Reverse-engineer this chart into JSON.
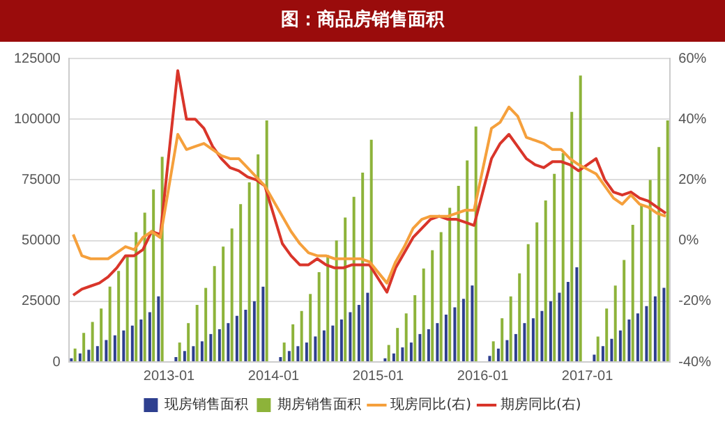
{
  "chart_data": {
    "type": "bar",
    "title": "图：商品房销售面积",
    "categories": [
      null,
      null,
      null,
      null,
      null,
      null,
      null,
      null,
      null,
      null,
      null,
      "2013-01",
      null,
      null,
      null,
      null,
      null,
      null,
      null,
      null,
      null,
      null,
      null,
      "2014-01",
      null,
      null,
      null,
      null,
      null,
      null,
      null,
      null,
      null,
      null,
      null,
      "2015-01",
      null,
      null,
      null,
      null,
      null,
      null,
      null,
      null,
      null,
      null,
      null,
      "2016-01",
      null,
      null,
      null,
      null,
      null,
      null,
      null,
      null,
      null,
      null,
      null,
      "2017-01",
      null,
      null,
      null,
      null,
      null,
      null,
      null,
      null,
      null
    ],
    "series": [
      {
        "name": "现房销售面积",
        "color": "#2e3f8f",
        "values": [
          1500,
          3500,
          5000,
          6500,
          9000,
          11000,
          13000,
          15000,
          17500,
          20500,
          27000,
          null,
          2000,
          4500,
          6500,
          8500,
          11500,
          13500,
          16000,
          19000,
          21500,
          25000,
          31000,
          null,
          2000,
          4500,
          6500,
          8000,
          10500,
          13000,
          15000,
          17500,
          20500,
          23500,
          28500,
          null,
          1500,
          3500,
          6000,
          8000,
          11500,
          13500,
          16000,
          19500,
          22500,
          26000,
          31500,
          null,
          2500,
          5500,
          9000,
          11500,
          16000,
          18000,
          21000,
          25000,
          28500,
          33000,
          39000,
          null,
          3000,
          6500,
          9500,
          13000,
          17500,
          20000,
          23000,
          27000,
          30500
        ]
      },
      {
        "name": "期房销售面积",
        "color": "#8db33a",
        "values": [
          5500,
          12000,
          16500,
          22000,
          31000,
          37500,
          43500,
          53500,
          61500,
          71000,
          84500,
          null,
          8000,
          16000,
          23500,
          30500,
          39500,
          47500,
          55000,
          65000,
          74000,
          85500,
          99500,
          null,
          8000,
          15500,
          21000,
          28000,
          37000,
          44000,
          50000,
          59500,
          68000,
          78000,
          91500,
          null,
          7000,
          14000,
          20000,
          27500,
          38500,
          46000,
          53500,
          63500,
          72500,
          83000,
          97000,
          null,
          8500,
          18000,
          27000,
          36500,
          48500,
          57500,
          66500,
          77500,
          86000,
          103000,
          118000,
          null,
          10500,
          22000,
          31500,
          42000,
          56500,
          65000,
          75000,
          88500,
          99500
        ]
      },
      {
        "name": "现房同比(右)",
        "type": "line",
        "axis": "y2",
        "color": "#f5a03c",
        "values": [
          2,
          -5,
          -6,
          -6,
          -6,
          -4,
          -2,
          -3,
          1,
          3,
          1,
          null,
          35,
          30,
          31,
          32,
          30,
          28,
          27,
          27,
          24,
          21,
          18,
          null,
          8,
          3,
          -1,
          -4,
          -5,
          -5,
          -6,
          -6,
          -6,
          -6,
          -7,
          null,
          -14,
          -7,
          -2,
          4,
          7,
          8,
          8,
          8,
          9,
          10,
          10,
          null,
          37,
          39,
          44,
          41,
          34,
          33,
          32,
          30,
          30,
          27,
          25,
          null,
          22,
          18,
          14,
          12,
          15,
          12,
          11,
          9,
          8
        ]
      },
      {
        "name": "期房同比(右)",
        "type": "line",
        "axis": "y2",
        "color": "#d9352a",
        "values": [
          -18,
          -16,
          -15,
          -14,
          -12,
          -9,
          -5,
          -5,
          -3,
          3,
          2,
          null,
          56,
          40,
          40,
          37,
          31,
          27,
          24,
          23,
          21,
          20,
          18,
          null,
          -1,
          -5,
          -8,
          -8,
          -6,
          -8,
          -9,
          -9,
          -8,
          -8,
          -8,
          null,
          -17,
          -9,
          -4,
          1,
          4,
          7,
          8,
          7,
          7,
          6,
          5,
          null,
          27,
          32,
          35,
          31,
          27,
          25,
          24,
          26,
          26,
          25,
          23,
          null,
          27,
          20,
          16,
          15,
          16,
          14,
          13,
          11,
          9
        ]
      }
    ],
    "ylim": [
      0,
      125000
    ],
    "yticks": [
      0,
      25000,
      50000,
      75000,
      100000,
      125000
    ],
    "y2lim": [
      -40,
      60
    ],
    "y2ticks": [
      {
        "value": -40,
        "label": "-40%"
      },
      {
        "value": -20,
        "label": "-20%"
      },
      {
        "value": 0,
        "label": "0%"
      },
      {
        "value": 20,
        "label": "20%"
      },
      {
        "value": 40,
        "label": "40%"
      },
      {
        "value": 60,
        "label": "60%"
      }
    ],
    "grid": "y",
    "legend": "bottom",
    "line_style": "solid"
  }
}
